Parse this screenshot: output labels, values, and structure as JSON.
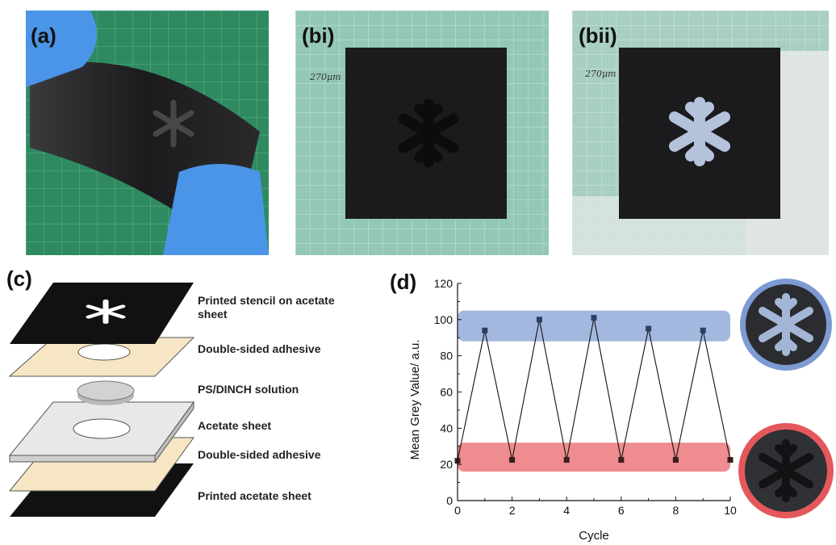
{
  "figure": {
    "panels": {
      "a": {
        "label": "(a)"
      },
      "bi": {
        "label": "(bi)",
        "handwriting": "270μm"
      },
      "bii": {
        "label": "(bii)",
        "handwriting": "270μm"
      },
      "c": {
        "label": "(c)"
      },
      "d": {
        "label": "(d)"
      }
    },
    "stack_labels": [
      "Printed stencil on acetate sheet",
      "Double-sided adhesive",
      "PS/DINCH solution",
      "Acetate sheet",
      "Double-sided adhesive",
      "Printed acetate sheet"
    ],
    "colors": {
      "glove": "#4a95e8",
      "film": "#1c1c1e",
      "mat_green": "#2f8a62",
      "adhesive": "#f6e6c4",
      "acetate": "#e8e8e8",
      "band_high": "#93acd8",
      "band_low": "#ec7f84",
      "inset_ring_high": "#7d9bd2",
      "inset_ring_low": "#e4585c"
    }
  },
  "chart_data": {
    "type": "line",
    "xlabel": "Cycle",
    "ylabel": "Mean Grey Value/ a.u.",
    "xlim": [
      0,
      10
    ],
    "ylim": [
      0,
      120
    ],
    "xticks": [
      "0",
      "2",
      "4",
      "6",
      "8",
      "10"
    ],
    "yticks": [
      "0",
      "20",
      "40",
      "60",
      "80",
      "100",
      "120"
    ],
    "x": [
      0,
      1,
      2,
      3,
      4,
      5,
      6,
      7,
      8,
      9,
      10
    ],
    "values": [
      22,
      94,
      22.5,
      100,
      22.5,
      101,
      22.5,
      95,
      22.5,
      94,
      22.5
    ],
    "high_band": [
      88,
      105
    ],
    "low_band": [
      16,
      32
    ],
    "grid": false,
    "legend": "none"
  }
}
